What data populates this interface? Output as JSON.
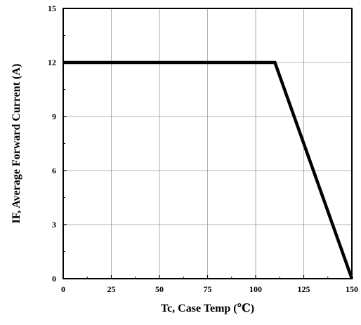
{
  "chart_data": {
    "type": "line",
    "title": "",
    "xlabel": "Tc, Case Temp (℃)",
    "ylabel": "IF, Average Forward Current (A)",
    "xlim": [
      0,
      150
    ],
    "ylim": [
      0,
      15
    ],
    "xticks": [
      0,
      25,
      50,
      75,
      100,
      125,
      150
    ],
    "yticks": [
      0,
      3,
      6,
      9,
      12,
      15
    ],
    "xtick_labels": [
      "0",
      "25",
      "50",
      "75",
      "100",
      "125",
      "150"
    ],
    "ytick_labels": [
      "0",
      "3",
      "6",
      "9",
      "12",
      "15"
    ],
    "grid": true,
    "legend": "none",
    "series": [
      {
        "x": [
          0,
          110,
          150
        ],
        "y": [
          12,
          12,
          0
        ],
        "color": "#000000"
      }
    ]
  }
}
